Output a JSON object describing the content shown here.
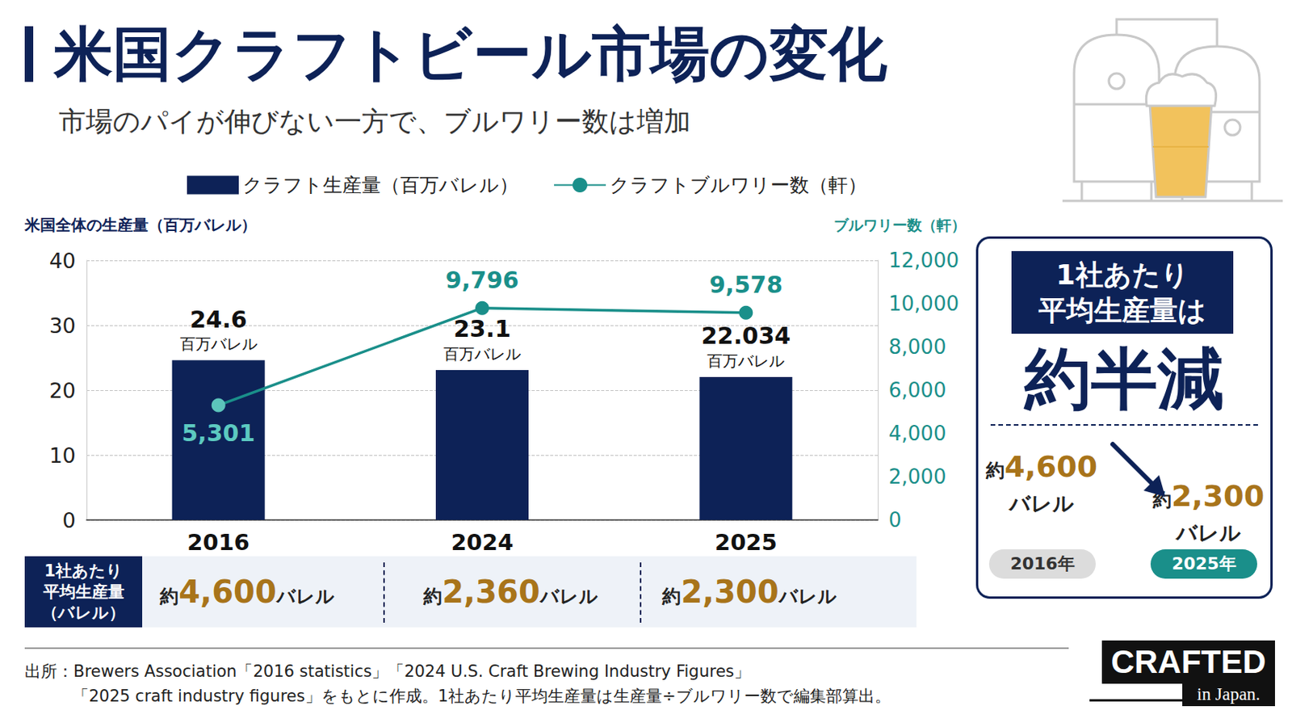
{
  "header": {
    "title": "米国クラフトビール市場の変化",
    "subtitle": "市場のパイが伸びない一方で、ブルワリー数は増加"
  },
  "chart_data": {
    "type": "bar",
    "y_label": "米国全体の生産量（百万バレル）",
    "y2_label": "ブルワリー数（軒）",
    "categories": [
      "2016",
      "2024",
      "2025"
    ],
    "series": [
      {
        "name": "クラフト生産量（百万バレル）",
        "type": "bar",
        "color": "#0d2257",
        "values": [
          24.6,
          23.1,
          22.034
        ],
        "label_unit": "百万バレル"
      },
      {
        "name": "クラフトブルワリー数（軒）",
        "type": "line",
        "color": "#1a8f8a",
        "axis": "y2",
        "marker": "circle",
        "values": [
          5301,
          9796,
          9578
        ],
        "value_labels": [
          "5,301",
          "9,796",
          "9,578"
        ]
      }
    ],
    "ylim": [
      0,
      40
    ],
    "yticks": [
      0,
      10,
      20,
      30,
      40
    ],
    "y2lim": [
      0,
      12000
    ],
    "y2ticks": [
      0,
      {
        "value": 2000,
        "label": "2,000"
      },
      {
        "value": 4000,
        "label": "4,000"
      },
      {
        "value": 6000,
        "label": "6,000"
      },
      {
        "value": 8000,
        "label": "8,000"
      },
      {
        "value": 10000,
        "label": "10,000"
      },
      {
        "value": 12000,
        "label": "12,000"
      }
    ],
    "grid": true,
    "legend": "top",
    "data_labels": true
  },
  "table": {
    "header": [
      "1社あたり",
      "平均生産量",
      "（バレル）"
    ],
    "cells": [
      {
        "prefix": "約",
        "value": "4,600",
        "unit": "バレル"
      },
      {
        "prefix": "約",
        "value": "2,360",
        "unit": "バレル"
      },
      {
        "prefix": "約",
        "value": "2,300",
        "unit": "バレル"
      }
    ]
  },
  "panel": {
    "header": [
      "1社あたり",
      "平均生産量は"
    ],
    "headline": "約半減",
    "from": {
      "prefix": "約",
      "value": "4,600",
      "unit": "バレル",
      "year": "2016年"
    },
    "to": {
      "prefix": "約",
      "value": "2,300",
      "unit": "バレル",
      "year": "2025年"
    }
  },
  "source": [
    "出所：Brewers Association「2016 statistics」「2024 U.S. Craft Brewing Industry Figures」",
    "「2025 craft industry figures」をもとに作成。1社あたり平均生産量は生産量÷ブルワリー数で編集部算出。"
  ],
  "logo": {
    "main": "CRAFTED",
    "sub": "in Japan."
  }
}
